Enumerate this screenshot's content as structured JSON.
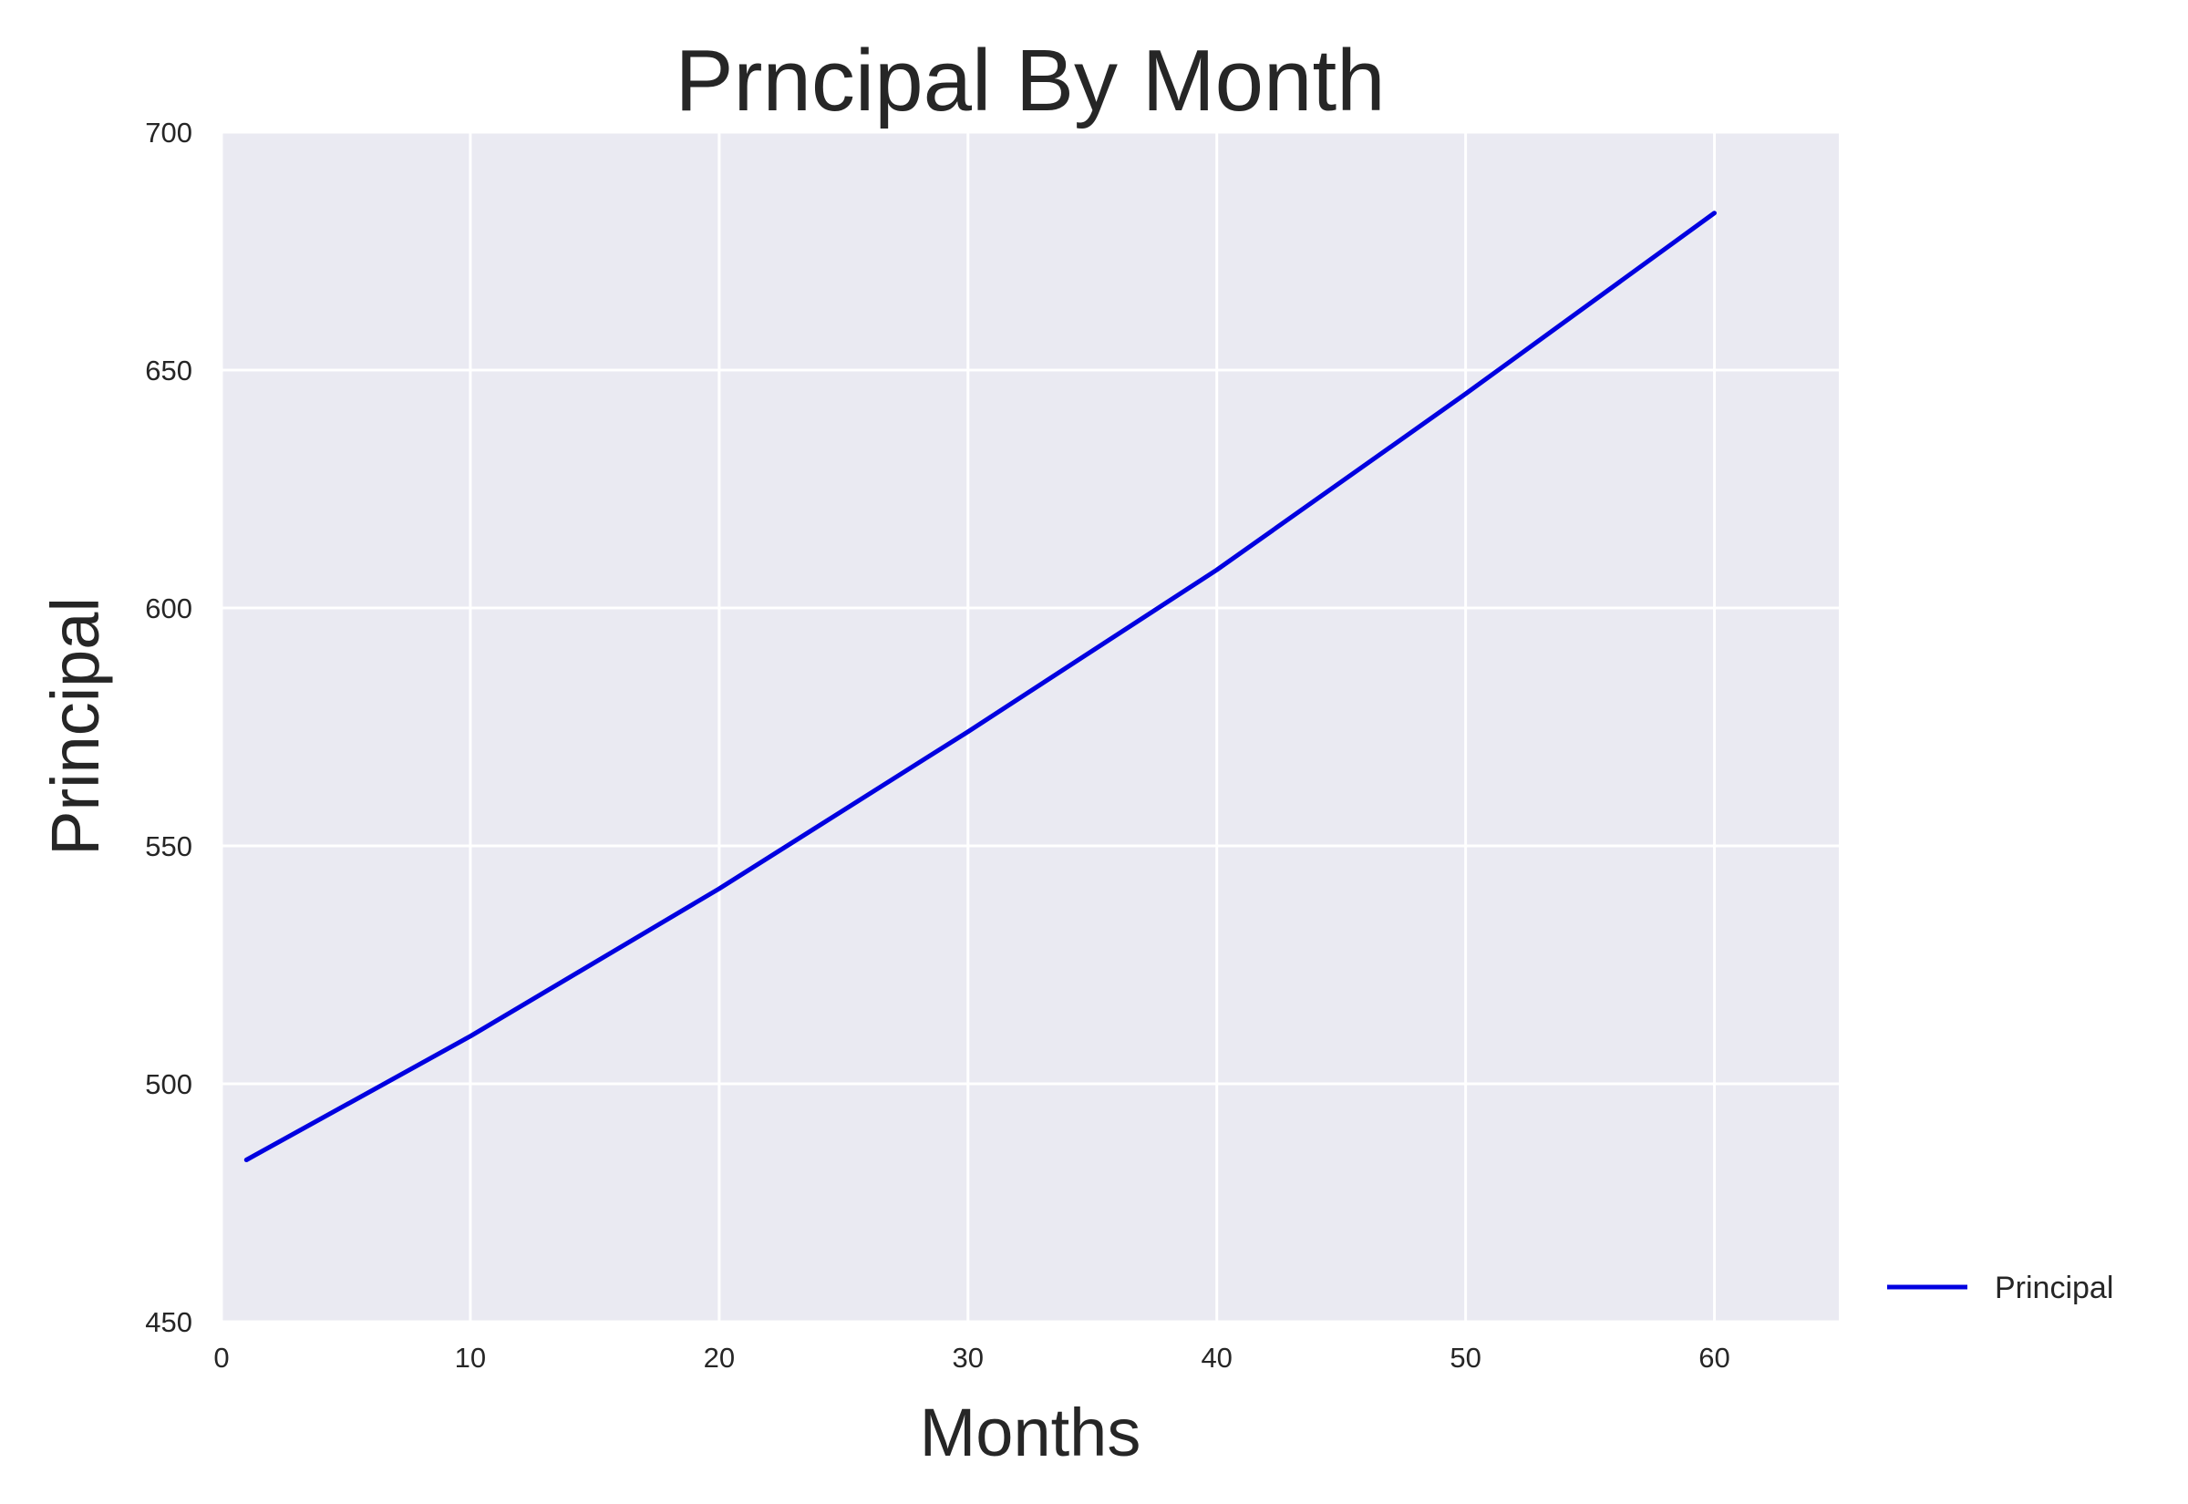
{
  "chart_data": {
    "type": "line",
    "title": "Prncipal By Month",
    "xlabel": "Months",
    "ylabel": "Principal",
    "xlim": [
      0,
      65
    ],
    "ylim": [
      450,
      700
    ],
    "xticks": [
      0,
      10,
      20,
      30,
      40,
      50,
      60
    ],
    "yticks": [
      450,
      500,
      550,
      600,
      650,
      700
    ],
    "grid": true,
    "legend_position": "outside-bottom-right",
    "colors": {
      "plot_background": "#EAEAF2",
      "grid": "#FFFFFF",
      "line": "#0000E0",
      "text": "#262626"
    },
    "series": [
      {
        "name": "Principal",
        "x": [
          1,
          10,
          20,
          30,
          40,
          50,
          60
        ],
        "values": [
          484,
          510,
          541,
          574,
          608,
          645,
          683
        ]
      }
    ]
  }
}
